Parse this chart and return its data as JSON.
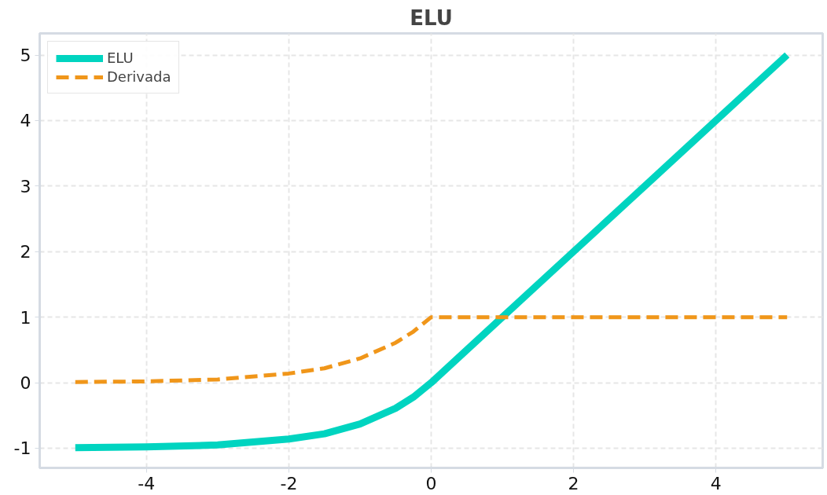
{
  "chart_data": {
    "type": "line",
    "title": "ELU",
    "x": [
      -5,
      -4,
      -3,
      -2,
      -1.5,
      -1,
      -0.5,
      -0.25,
      0,
      1,
      2,
      3,
      4,
      5
    ],
    "series": [
      {
        "name": "ELU",
        "color": "#00d4c0",
        "line_style": "solid",
        "values": [
          -0.99,
          -0.98,
          -0.95,
          -0.86,
          -0.78,
          -0.63,
          -0.39,
          -0.22,
          0,
          1,
          2,
          3,
          4,
          5
        ]
      },
      {
        "name": "Derivada",
        "color": "#f0961a",
        "line_style": "dashed",
        "values": [
          0.01,
          0.02,
          0.05,
          0.14,
          0.22,
          0.37,
          0.61,
          0.78,
          1,
          1,
          1,
          1,
          1,
          1
        ]
      }
    ],
    "xlim": [
      -5.5,
      5.5
    ],
    "ylim": [
      -1.3,
      5.33
    ],
    "xticks": [
      -4,
      -2,
      0,
      2,
      4
    ],
    "yticks": [
      -1,
      0,
      1,
      2,
      3,
      4,
      5
    ],
    "grid": true,
    "legend": "top left",
    "marker": "none"
  }
}
